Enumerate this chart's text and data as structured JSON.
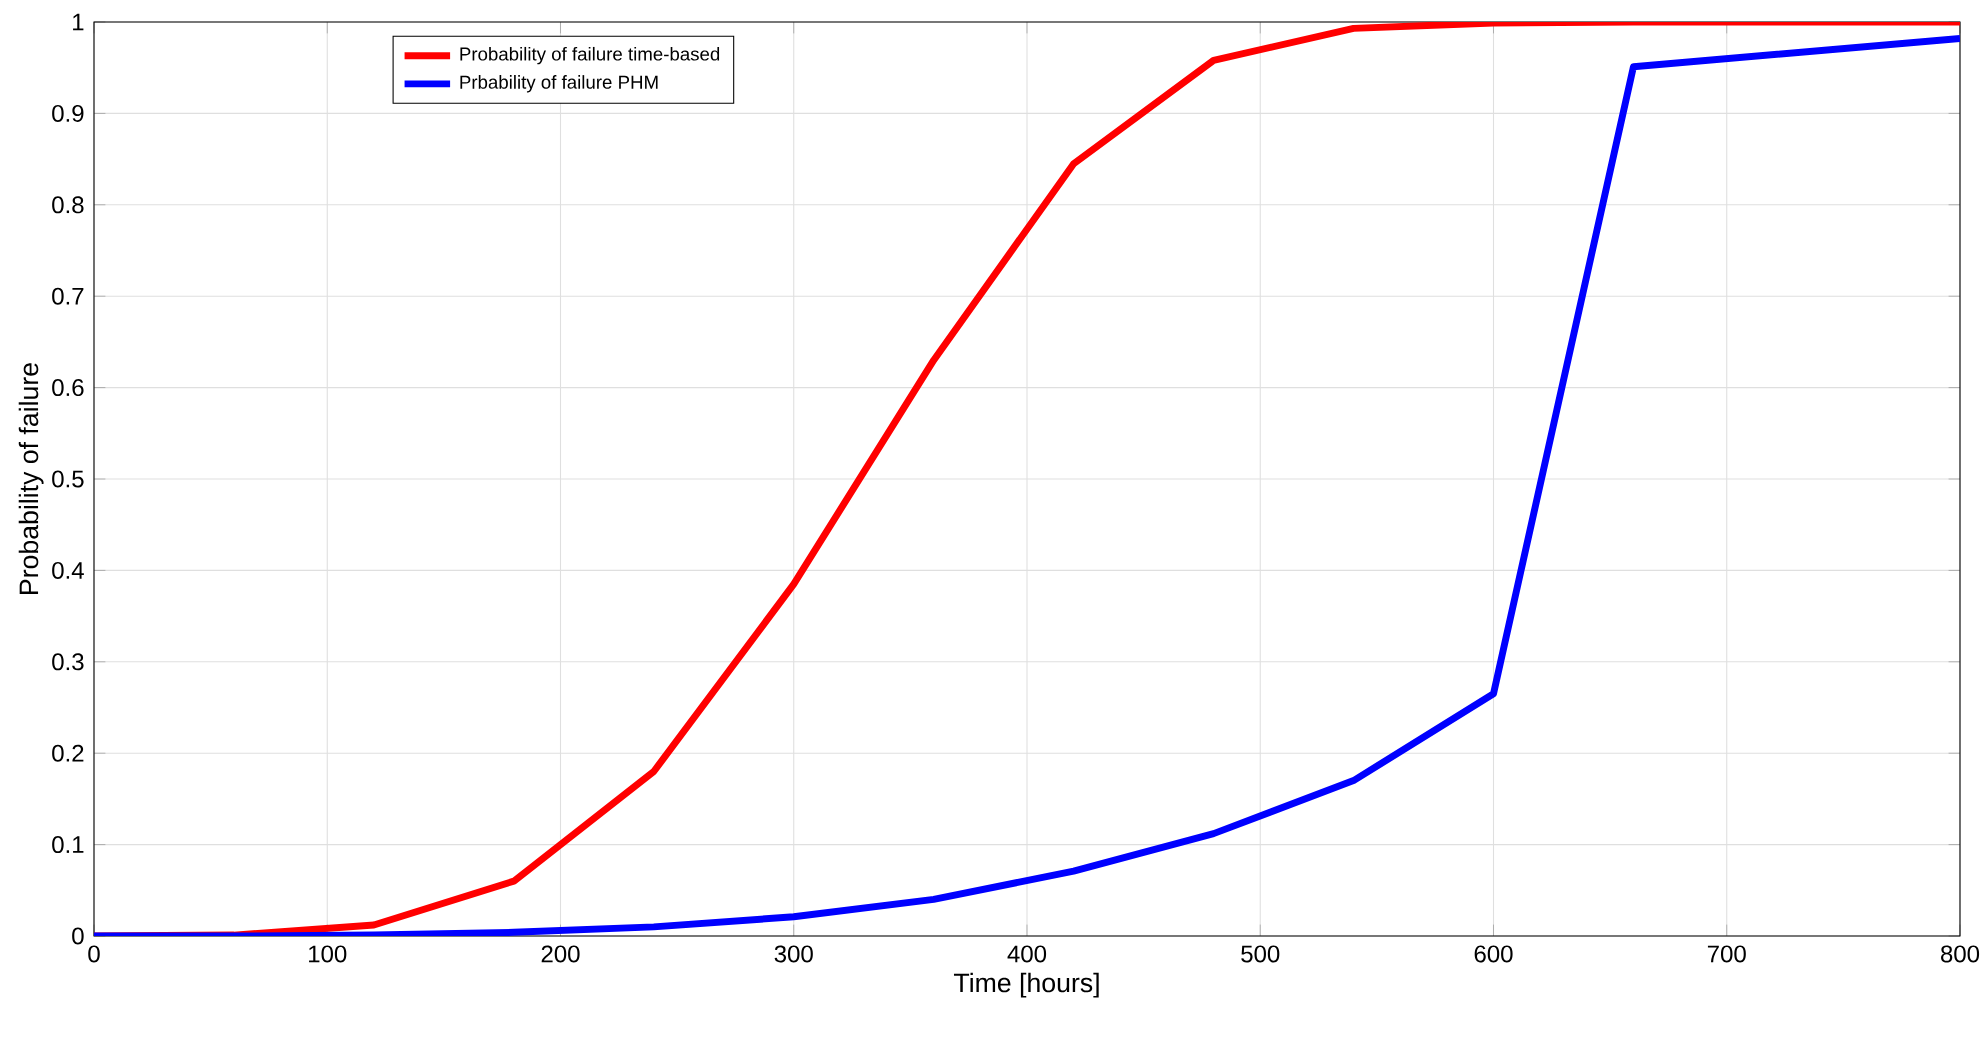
{
  "chart_data": {
    "type": "line",
    "xlabel": "Time [hours]",
    "ylabel": "Probability of failure",
    "x": [
      0,
      60,
      120,
      180,
      240,
      300,
      360,
      420,
      480,
      540,
      600,
      660,
      800
    ],
    "series": [
      {
        "name": "Probability of failure time-based",
        "color": "#ff0000",
        "values": [
          0,
          0.001,
          0.012,
          0.06,
          0.18,
          0.385,
          0.63,
          0.845,
          0.958,
          0.993,
          0.999,
          1,
          1
        ]
      },
      {
        "name": "Prbability of failure PHM",
        "color": "#0000ff",
        "values": [
          0,
          0,
          0.001,
          0.004,
          0.01,
          0.021,
          0.04,
          0.071,
          0.112,
          0.17,
          0.265,
          0.951,
          0.982
        ]
      }
    ],
    "xlim": [
      0,
      800
    ],
    "ylim": [
      0,
      1
    ],
    "xticks": [
      0,
      100,
      200,
      300,
      400,
      500,
      600,
      700,
      800
    ],
    "yticks": [
      0,
      0.1,
      0.2,
      0.3,
      0.4,
      0.5,
      0.6,
      0.7,
      0.8,
      0.9,
      1
    ],
    "grid": true,
    "legend": "top left",
    "marker": "none",
    "line_style": "solid"
  }
}
